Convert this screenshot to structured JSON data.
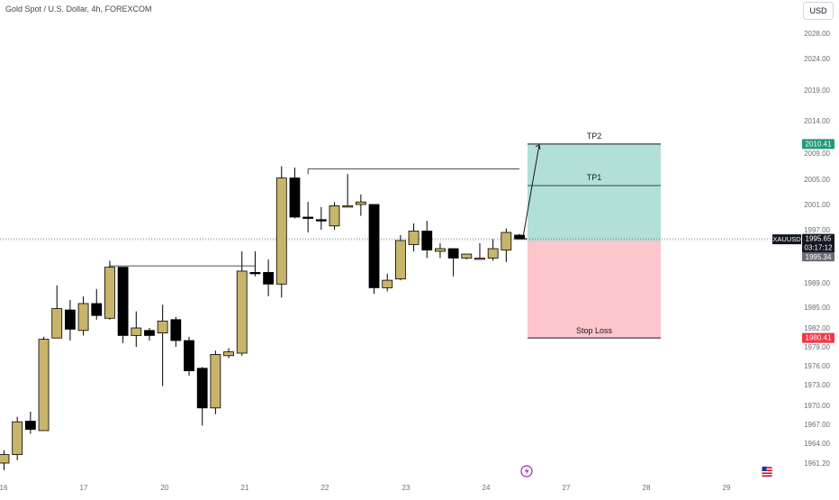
{
  "header": {
    "title": "Gold Spot / U.S. Dollar, 4h, FOREXCOM",
    "currency": "USD"
  },
  "colors": {
    "bull": "#c8b46a",
    "bear": "#000000",
    "wick": "#000000",
    "tp_zone": "#b2e0d6",
    "sl_zone": "#fcc6cc",
    "tp_tag": "#22997a",
    "sl_tag": "#f23645",
    "price_tag": "#131722",
    "prev_tag": "#6a6d78",
    "axis_text": "#6a6d78",
    "lightning": "#9c27b0"
  },
  "chart_data": {
    "type": "candlestick",
    "symbol": "XAUUSD",
    "timeframe": "4h",
    "x_ticks": [
      "16",
      "17",
      "20",
      "21",
      "22",
      "23",
      "24",
      "27",
      "28",
      "29"
    ],
    "y_ticks": [
      "2028.00",
      "2024.00",
      "2019.00",
      "2014.00",
      "2009.00",
      "2005.00",
      "2001.00",
      "1997.00",
      "1993.00",
      "1989.00",
      "1985.00",
      "1982.00",
      "1979.00",
      "1976.00",
      "1973.00",
      "1970.00",
      "1967.00",
      "1964.00",
      "1961.20"
    ],
    "candles": [
      {
        "o": 1961.2,
        "h": 1963.0,
        "l": 1960.2,
        "c": 1962.4
      },
      {
        "o": 1962.4,
        "h": 1968.2,
        "l": 1961.6,
        "c": 1967.4
      },
      {
        "o": 1967.5,
        "h": 1969.0,
        "l": 1965.5,
        "c": 1966.2
      },
      {
        "o": 1966.0,
        "h": 1980.6,
        "l": 1966.0,
        "c": 1980.2
      },
      {
        "o": 1980.4,
        "h": 1988.6,
        "l": 1980.4,
        "c": 1984.8
      },
      {
        "o": 1984.6,
        "h": 1986.2,
        "l": 1980.0,
        "c": 1981.8
      },
      {
        "o": 1981.6,
        "h": 1986.8,
        "l": 1980.8,
        "c": 1985.6
      },
      {
        "o": 1985.6,
        "h": 1988.0,
        "l": 1983.2,
        "c": 1983.8
      },
      {
        "o": 1983.4,
        "h": 1992.4,
        "l": 1983.2,
        "c": 1991.4
      },
      {
        "o": 1991.4,
        "h": 1991.4,
        "l": 1979.6,
        "c": 1980.8
      },
      {
        "o": 1980.8,
        "h": 1984.4,
        "l": 1979.0,
        "c": 1982.0
      },
      {
        "o": 1981.6,
        "h": 1982.0,
        "l": 1980.0,
        "c": 1980.8
      },
      {
        "o": 1981.2,
        "h": 1985.4,
        "l": 1972.8,
        "c": 1983.0
      },
      {
        "o": 1983.2,
        "h": 1983.6,
        "l": 1979.0,
        "c": 1980.0
      },
      {
        "o": 1980.0,
        "h": 1980.6,
        "l": 1974.4,
        "c": 1975.2
      },
      {
        "o": 1975.6,
        "h": 1975.8,
        "l": 1966.8,
        "c": 1969.6
      },
      {
        "o": 1969.6,
        "h": 1978.4,
        "l": 1968.6,
        "c": 1977.8
      },
      {
        "o": 1977.6,
        "h": 1978.8,
        "l": 1977.2,
        "c": 1978.2
      },
      {
        "o": 1978.0,
        "h": 1993.8,
        "l": 1977.6,
        "c": 1990.8
      },
      {
        "o": 1990.6,
        "h": 1993.8,
        "l": 1990.0,
        "c": 1990.4
      },
      {
        "o": 1990.6,
        "h": 1992.6,
        "l": 1986.8,
        "c": 1988.8
      },
      {
        "o": 1988.8,
        "h": 2007.0,
        "l": 1986.6,
        "c": 2005.2
      },
      {
        "o": 2005.2,
        "h": 2006.8,
        "l": 1998.8,
        "c": 1999.0
      },
      {
        "o": 1999.0,
        "h": 2001.4,
        "l": 1996.6,
        "c": 1998.8
      },
      {
        "o": 1998.6,
        "h": 2000.6,
        "l": 1997.0,
        "c": 1998.4
      },
      {
        "o": 1997.6,
        "h": 2001.4,
        "l": 1997.0,
        "c": 2000.8
      },
      {
        "o": 2000.8,
        "h": 2005.8,
        "l": 2000.6,
        "c": 2000.8
      },
      {
        "o": 2001.0,
        "h": 2002.6,
        "l": 1999.2,
        "c": 2001.4
      },
      {
        "o": 2001.0,
        "h": 2001.0,
        "l": 1987.2,
        "c": 1988.2
      },
      {
        "o": 1988.2,
        "h": 1990.4,
        "l": 1987.6,
        "c": 1989.4
      },
      {
        "o": 1989.6,
        "h": 1996.2,
        "l": 1989.4,
        "c": 1995.4
      },
      {
        "o": 1994.8,
        "h": 1998.0,
        "l": 1993.8,
        "c": 1996.8
      },
      {
        "o": 1996.8,
        "h": 1998.4,
        "l": 1992.8,
        "c": 1994.0
      },
      {
        "o": 1993.8,
        "h": 1995.0,
        "l": 1992.8,
        "c": 1994.2
      },
      {
        "o": 1994.2,
        "h": 1994.2,
        "l": 1990.0,
        "c": 1992.8
      },
      {
        "o": 1992.8,
        "h": 1993.4,
        "l": 1992.6,
        "c": 1993.4
      },
      {
        "o": 1992.8,
        "h": 1995.0,
        "l": 1992.6,
        "c": 1992.8
      },
      {
        "o": 1992.8,
        "h": 1995.6,
        "l": 1992.4,
        "c": 1994.2
      },
      {
        "o": 1994.0,
        "h": 1997.2,
        "l": 1992.2,
        "c": 1996.6
      },
      {
        "o": 1996.2,
        "h": 1996.4,
        "l": 1995.6,
        "c": 1995.65
      }
    ],
    "levels": [
      {
        "label": "",
        "price": 1991.6,
        "from_candle": 8,
        "to_candle": 19
      },
      {
        "label": "",
        "price": 2006.6,
        "from_candle": 23,
        "to_candle": 39
      }
    ],
    "position": {
      "type": "long",
      "entry": 1995.34,
      "tp1": 2004.0,
      "tp2": 2010.41,
      "stop": 1980.41,
      "labels": {
        "tp1": "TP1",
        "tp2": "TP2",
        "stop": "Stop Loss"
      }
    },
    "price_labels": {
      "tp2": "2010.41",
      "current_symbol": "XAUUSD",
      "current_price": "1995.65",
      "countdown": "03:17:12",
      "previous_close": "1995.34",
      "stop": "1980.41"
    }
  }
}
